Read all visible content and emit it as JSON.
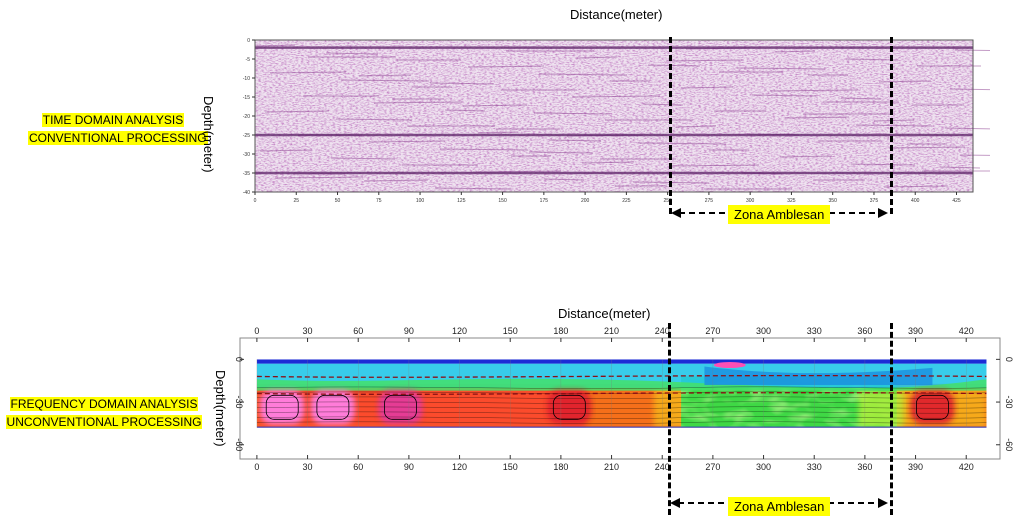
{
  "panels": [
    {
      "label_line1": "TIME DOMAIN ANALYSIS",
      "label_line2": "CONVENTIONAL PROCESSING",
      "x_axis_title": "Distance(meter)",
      "y_axis_title": "Depth(meter)",
      "zone_label": "Zona Amblesan"
    },
    {
      "label_line1": "FREQUENCY DOMAIN ANALYSIS",
      "label_line2": "UNCONVENTIONAL PROCESSING",
      "x_axis_title": "Distance(meter)",
      "y_axis_title": "Depth(meter)",
      "zone_label": "Zona Amblesan"
    }
  ],
  "chart_data": [
    {
      "type": "heatmap",
      "xlabel": "Distance(meter)",
      "ylabel": "Depth(meter)",
      "x_ticks": [
        "0",
        "25",
        "50",
        "75",
        "100",
        "125",
        "150",
        "175",
        "200",
        "225",
        "250",
        "275",
        "300",
        "325",
        "350",
        "375",
        "400",
        "425"
      ],
      "y_ticks": [
        "0",
        "-5",
        "-10",
        "-15",
        "-20",
        "-25",
        "-30",
        "-35",
        "-40"
      ],
      "xlim": [
        0,
        435
      ],
      "ylim": [
        -40,
        0
      ],
      "reflectors_depth": [
        -2,
        -25,
        -35
      ],
      "zone": {
        "label": "Zona Amblesan",
        "x_start": 250,
        "x_end": 380
      },
      "colors": {
        "trace": "#8a3c8f",
        "dark": "#5b1f66"
      }
    },
    {
      "type": "heatmap",
      "xlabel": "Distance(meter)",
      "ylabel": "Depth(meter)",
      "x_ticks": [
        "0",
        "30",
        "60",
        "90",
        "120",
        "150",
        "180",
        "210",
        "240",
        "270",
        "300",
        "330",
        "360",
        "390",
        "420"
      ],
      "y_ticks": [
        "0",
        "-30",
        "-60"
      ],
      "xlim": [
        -10,
        440
      ],
      "ylim": [
        -70,
        15
      ],
      "layers": [
        {
          "depth_top": 0,
          "depth_bottom": -3,
          "color": "#1c2bd6"
        },
        {
          "depth_top": -3,
          "depth_bottom": -20,
          "color": "#22c7e8"
        },
        {
          "depth_top": -20,
          "depth_bottom": -48,
          "color": "#f56f1a"
        }
      ],
      "anomalies": [
        {
          "x": 15,
          "depth": -33,
          "color": "#ff7fe3"
        },
        {
          "x": 45,
          "depth": -33,
          "color": "#ff7fe3"
        },
        {
          "x": 85,
          "depth": -33,
          "color": "#e43a9a"
        },
        {
          "x": 185,
          "depth": -33,
          "color": "#e0202e"
        },
        {
          "x": 400,
          "depth": -33,
          "color": "#e0202e"
        }
      ],
      "zone": {
        "label": "Zona Amblesan",
        "x_start": 250,
        "x_end": 380
      }
    }
  ]
}
